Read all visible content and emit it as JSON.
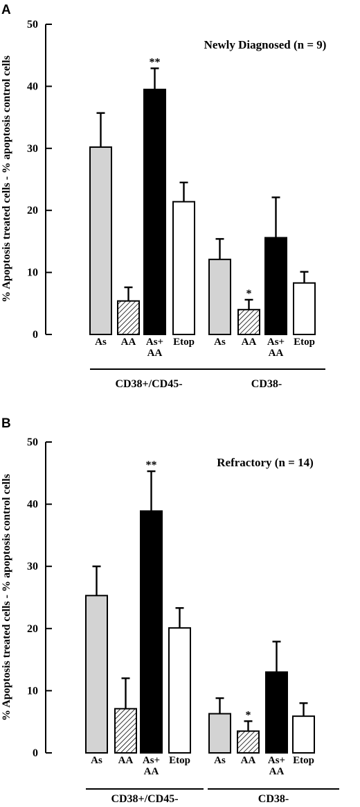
{
  "chart_data": [
    {
      "type": "bar",
      "panel": "A",
      "title": "Newly Diagnosed (n = 9)",
      "ylabel": "% Apoptosis treated cells - % apoptosis control cells",
      "xlabel": "",
      "ylim": [
        0,
        50
      ],
      "yticks": [
        "0",
        "10",
        "20",
        "30",
        "40",
        "50"
      ],
      "grid": false,
      "groups": [
        {
          "label": "CD38+/CD45-",
          "bars": [
            {
              "category": "As",
              "value": 30.2,
              "error": 5.5,
              "fill": "gray",
              "sig": ""
            },
            {
              "category": "AA",
              "value": 5.4,
              "error": 2.2,
              "fill": "hatched",
              "sig": ""
            },
            {
              "category": "As+ AA",
              "category_lines": [
                "As+",
                "AA"
              ],
              "value": 39.5,
              "error": 3.4,
              "fill": "black",
              "sig": "**"
            },
            {
              "category": "Etop",
              "value": 21.4,
              "error": 3.1,
              "fill": "white",
              "sig": ""
            }
          ]
        },
        {
          "label": "CD38-",
          "bars": [
            {
              "category": "As",
              "value": 12.1,
              "error": 3.3,
              "fill": "gray",
              "sig": ""
            },
            {
              "category": "AA",
              "value": 4.0,
              "error": 1.6,
              "fill": "hatched",
              "sig": "*"
            },
            {
              "category": "As+ AA",
              "category_lines": [
                "As+",
                "AA"
              ],
              "value": 15.6,
              "error": 6.5,
              "fill": "black",
              "sig": ""
            },
            {
              "category": "Etop",
              "value": 8.3,
              "error": 1.8,
              "fill": "white",
              "sig": ""
            }
          ]
        }
      ]
    },
    {
      "type": "bar",
      "panel": "B",
      "title": "Refractory (n = 14)",
      "ylabel": "% Apoptosis treated cells - % apoptosis control cells",
      "xlabel": "",
      "ylim": [
        0,
        50
      ],
      "yticks": [
        "0",
        "10",
        "20",
        "30",
        "40",
        "50"
      ],
      "grid": false,
      "groups": [
        {
          "label": "CD38+/CD45-",
          "bars": [
            {
              "category": "As",
              "value": 25.3,
              "error": 4.7,
              "fill": "gray",
              "sig": ""
            },
            {
              "category": "AA",
              "value": 7.1,
              "error": 4.9,
              "fill": "hatched",
              "sig": ""
            },
            {
              "category": "As+ AA",
              "category_lines": [
                "As+",
                "AA"
              ],
              "value": 38.9,
              "error": 6.4,
              "fill": "black",
              "sig": "**"
            },
            {
              "category": "Etop",
              "value": 20.1,
              "error": 3.2,
              "fill": "white",
              "sig": ""
            }
          ]
        },
        {
          "label": "CD38-",
          "bars": [
            {
              "category": "As",
              "value": 6.3,
              "error": 2.5,
              "fill": "gray",
              "sig": ""
            },
            {
              "category": "AA",
              "value": 3.5,
              "error": 1.6,
              "fill": "hatched",
              "sig": "*"
            },
            {
              "category": "As+ AA",
              "category_lines": [
                "As+",
                "AA"
              ],
              "value": 13.0,
              "error": 4.9,
              "fill": "black",
              "sig": ""
            },
            {
              "category": "Etop",
              "value": 5.9,
              "error": 2.1,
              "fill": "white",
              "sig": ""
            }
          ]
        }
      ]
    }
  ],
  "colors": {
    "gray": "#d3d3d3",
    "black": "#000000",
    "white": "#ffffff",
    "axis": "#000000"
  }
}
